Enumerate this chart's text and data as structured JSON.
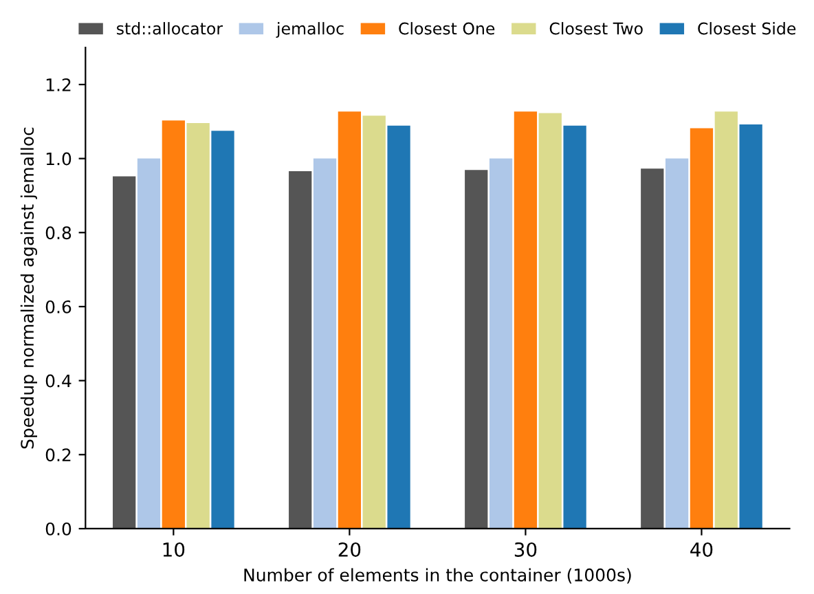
{
  "chart_data": {
    "type": "bar",
    "xlabel": "Number of elements in the container (1000s)",
    "ylabel": "Speedup normalized against jemalloc",
    "categories": [
      "10",
      "20",
      "30",
      "40"
    ],
    "series": [
      {
        "name": "std::allocator",
        "color": "#555555",
        "values": [
          0.952,
          0.966,
          0.969,
          0.973
        ]
      },
      {
        "name": "jemalloc",
        "color": "#aec7e8",
        "values": [
          1.0,
          1.0,
          1.0,
          1.0
        ]
      },
      {
        "name": "Closest One",
        "color": "#ff7f0e",
        "values": [
          1.103,
          1.127,
          1.127,
          1.082
        ]
      },
      {
        "name": "Closest Two",
        "color": "#dbdb8d",
        "values": [
          1.096,
          1.116,
          1.123,
          1.127
        ]
      },
      {
        "name": "Closest Side",
        "color": "#1f77b4",
        "values": [
          1.075,
          1.089,
          1.089,
          1.092
        ]
      }
    ],
    "ylim": [
      0,
      1.3
    ],
    "yticks": [
      {
        "value": 0,
        "label": "0.0"
      },
      0.2,
      0.4,
      0.6,
      0.8,
      {
        "value": 1,
        "label": "1.0"
      },
      1.2
    ],
    "grid": false,
    "legend": "top"
  }
}
